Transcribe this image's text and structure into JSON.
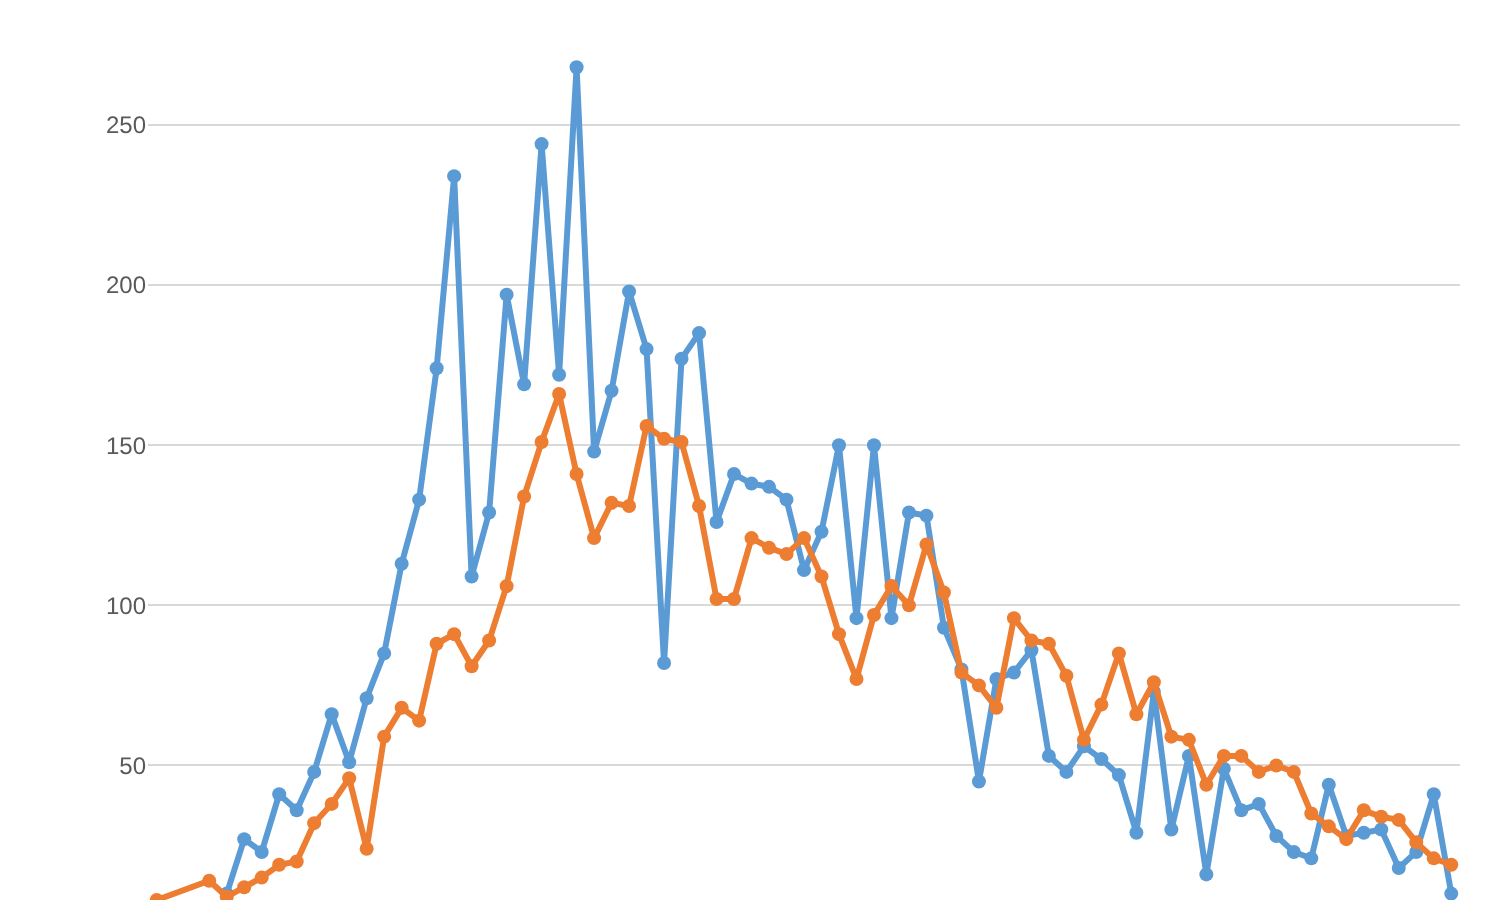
{
  "chart_data": {
    "type": "line",
    "categories": [
      null,
      null,
      null,
      null,
      null,
      null,
      null,
      null,
      null,
      null,
      null,
      null,
      null,
      null,
      null,
      null,
      null,
      null,
      null,
      null,
      null,
      null,
      null,
      null,
      null,
      null,
      null,
      null,
      null,
      null,
      null,
      null,
      null,
      null,
      null,
      null,
      null,
      null,
      null,
      null,
      null,
      null,
      null,
      null,
      null,
      null,
      null,
      null,
      null,
      null,
      null,
      null,
      null,
      null,
      null,
      null,
      null,
      null,
      null,
      null,
      null,
      null,
      null,
      null,
      null,
      null,
      null,
      null,
      null,
      null,
      null,
      null,
      null,
      null,
      null
    ],
    "series": [
      {
        "color": "#5b9bd5",
        "values": [
          null,
          null,
          null,
          null,
          10,
          27,
          23,
          41,
          36,
          48,
          66,
          51,
          71,
          85,
          113,
          133,
          174,
          234,
          109,
          129,
          197,
          169,
          244,
          172,
          268,
          148,
          167,
          198,
          180,
          82,
          177,
          185,
          126,
          141,
          138,
          137,
          133,
          111,
          123,
          150,
          96,
          150,
          96,
          129,
          128,
          93,
          80,
          45,
          77,
          79,
          86,
          53,
          48,
          56,
          52,
          47,
          29,
          73,
          30,
          53,
          16,
          49,
          36,
          38,
          28,
          23,
          21,
          44,
          28,
          29,
          30,
          18,
          23,
          41,
          10
        ]
      },
      {
        "color": "#ed7d31",
        "values": [
          8,
          null,
          null,
          14,
          9,
          12,
          15,
          19,
          20,
          32,
          38,
          46,
          24,
          59,
          68,
          64,
          88,
          91,
          81,
          89,
          106,
          134,
          151,
          166,
          141,
          121,
          132,
          131,
          156,
          152,
          151,
          131,
          102,
          102,
          121,
          118,
          116,
          121,
          109,
          91,
          77,
          97,
          106,
          100,
          119,
          104,
          79,
          75,
          68,
          96,
          89,
          88,
          78,
          58,
          69,
          85,
          66,
          76,
          59,
          58,
          44,
          53,
          53,
          48,
          50,
          48,
          35,
          31,
          27,
          36,
          34,
          33,
          26,
          21,
          19
        ]
      }
    ],
    "ylim": [
      8,
      289
    ],
    "yticks": [
      50,
      100,
      150,
      200,
      250
    ],
    "grid": "y",
    "marker": "circle",
    "line_style": "solid",
    "tick_labels": "y"
  }
}
